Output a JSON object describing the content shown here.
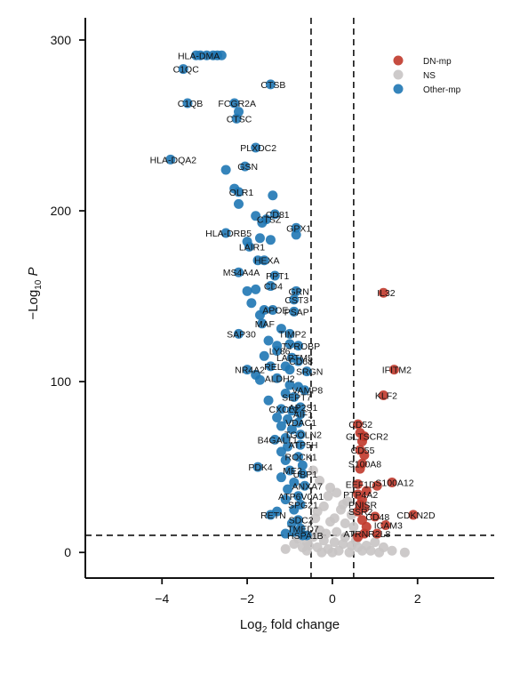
{
  "chart_data": {
    "type": "scatter",
    "title": "",
    "xlabel_base": "Log",
    "xlabel_sub": "2",
    "xlabel_rest": " fold change",
    "ylabel_prefix": "−Log",
    "ylabel_sub": "10",
    "ylabel_var": "P",
    "xlim": [
      -5.8,
      3.8
    ],
    "ylim": [
      -15,
      313
    ],
    "xticks": [
      -4,
      -2,
      0,
      2
    ],
    "yticks": [
      0,
      100,
      200,
      300
    ],
    "xtick_labels": [
      "−4",
      "−2",
      "0",
      "2"
    ],
    "ytick_labels": [
      "0",
      "100",
      "200",
      "300"
    ],
    "grid": false,
    "thresholds": {
      "x": [
        -0.5,
        0.5
      ],
      "y": 10
    },
    "legend": {
      "position": "top-right",
      "entries": [
        {
          "name": "DN-mp",
          "color": "#c0392b"
        },
        {
          "name": "NS",
          "color": "#c8c4c4"
        },
        {
          "name": "Other-mp",
          "color": "#1f77b4"
        }
      ]
    },
    "series": [
      {
        "name": "Other-mp",
        "color": "#1f77b4",
        "points": [
          [
            -3.2,
            291,
            "HLA-DMA"
          ],
          [
            -3.1,
            291,
            ""
          ],
          [
            -2.95,
            291,
            ""
          ],
          [
            -2.8,
            291,
            ""
          ],
          [
            -2.7,
            291,
            ""
          ],
          [
            -2.6,
            291,
            ""
          ],
          [
            -3.5,
            283,
            "C1QC"
          ],
          [
            -1.45,
            274,
            "CTSB"
          ],
          [
            -3.4,
            263,
            "C1QB"
          ],
          [
            -2.3,
            263,
            "FCGR2A"
          ],
          [
            -2.2,
            258,
            ""
          ],
          [
            -2.25,
            254,
            "CTSC"
          ],
          [
            -1.8,
            237,
            "PLXDC2"
          ],
          [
            -3.8,
            230,
            "HLA-DQA2"
          ],
          [
            -2.05,
            226,
            "GSN"
          ],
          [
            -2.5,
            224,
            ""
          ],
          [
            -2.2,
            211,
            "OLR1"
          ],
          [
            -2.3,
            213,
            ""
          ],
          [
            -1.4,
            209,
            ""
          ],
          [
            -2.2,
            204,
            ""
          ],
          [
            -1.35,
            198,
            "CD81"
          ],
          [
            -1.8,
            197,
            ""
          ],
          [
            -1.55,
            195,
            "CTSZ"
          ],
          [
            -1.65,
            193,
            ""
          ],
          [
            -0.85,
            190,
            "GPX1"
          ],
          [
            -0.85,
            186,
            ""
          ],
          [
            -2.5,
            187,
            "HLA-DRB5"
          ],
          [
            -1.7,
            184,
            ""
          ],
          [
            -2.0,
            182,
            ""
          ],
          [
            -1.45,
            183,
            ""
          ],
          [
            -1.95,
            179,
            "LAIR1"
          ],
          [
            -1.6,
            171,
            "HEXA"
          ],
          [
            -1.75,
            171,
            ""
          ],
          [
            -2.2,
            164,
            "MS4A4A"
          ],
          [
            -1.35,
            162,
            "PPT1"
          ],
          [
            -1.45,
            156,
            "CD4"
          ],
          [
            -1.8,
            154,
            ""
          ],
          [
            -2.0,
            153,
            ""
          ],
          [
            -0.85,
            153,
            "GRN"
          ],
          [
            -0.9,
            148,
            "CST3"
          ],
          [
            -1.9,
            146,
            ""
          ],
          [
            -1.4,
            142,
            "APOE"
          ],
          [
            -0.9,
            141,
            "PSAP"
          ],
          [
            -1.6,
            142,
            ""
          ],
          [
            -1.7,
            139,
            ""
          ],
          [
            -1.65,
            134,
            "MAF"
          ],
          [
            -1.2,
            131,
            ""
          ],
          [
            -1.0,
            128,
            "TIMP2"
          ],
          [
            -2.2,
            128,
            "SAP30"
          ],
          [
            -1.5,
            124,
            ""
          ],
          [
            -1.0,
            122,
            ""
          ],
          [
            -0.8,
            121,
            "TYROBP"
          ],
          [
            -1.3,
            121,
            ""
          ],
          [
            -1.3,
            118,
            "LY86"
          ],
          [
            -0.95,
            114,
            "LAPTM5"
          ],
          [
            -1.6,
            115,
            ""
          ],
          [
            -0.8,
            112,
            "CD68"
          ],
          [
            -1.1,
            109,
            ""
          ],
          [
            -1.45,
            109,
            "REL"
          ],
          [
            -1.0,
            107,
            ""
          ],
          [
            -2.0,
            107,
            "NR4A2"
          ],
          [
            -0.6,
            106,
            "SRGN"
          ],
          [
            -1.8,
            104,
            ""
          ],
          [
            -1.3,
            102,
            "ALDH2"
          ],
          [
            -1.7,
            101,
            ""
          ],
          [
            -1.0,
            98,
            ""
          ],
          [
            -0.8,
            97,
            ""
          ],
          [
            -0.65,
            95,
            "VAMP8"
          ],
          [
            -1.1,
            93,
            ""
          ],
          [
            -0.9,
            91,
            "SEPT7"
          ],
          [
            -1.5,
            89,
            ""
          ],
          [
            -0.75,
            85,
            "AP2S1"
          ],
          [
            -1.2,
            84,
            "CXCL2"
          ],
          [
            -0.95,
            83,
            ""
          ],
          [
            -0.75,
            81,
            "AIF1"
          ],
          [
            -1.3,
            79,
            ""
          ],
          [
            -1.05,
            78,
            ""
          ],
          [
            -0.8,
            76,
            "VDAC1"
          ],
          [
            -1.2,
            74,
            ""
          ],
          [
            -0.95,
            72,
            ""
          ],
          [
            -0.75,
            69,
            "TGOLN2"
          ],
          [
            -1.1,
            67,
            ""
          ],
          [
            -1.35,
            66,
            "B4GALT1"
          ],
          [
            -0.75,
            63,
            "ATP5H"
          ],
          [
            -1.05,
            62,
            ""
          ],
          [
            -1.2,
            59,
            ""
          ],
          [
            -0.8,
            56,
            "ROCK1"
          ],
          [
            -1.1,
            54,
            ""
          ],
          [
            -1.75,
            50,
            "PDK4"
          ],
          [
            -0.7,
            51,
            ""
          ],
          [
            -1.0,
            48,
            "ME2"
          ],
          [
            -0.7,
            46,
            "UBP1"
          ],
          [
            -1.2,
            44,
            ""
          ],
          [
            -0.9,
            41,
            ""
          ],
          [
            -0.65,
            39,
            "ANXA7"
          ],
          [
            -1.05,
            37,
            ""
          ],
          [
            -0.8,
            33,
            "ATP6V0A1"
          ],
          [
            -1.1,
            31,
            ""
          ],
          [
            -0.75,
            28,
            "SPG21"
          ],
          [
            -0.9,
            25,
            ""
          ],
          [
            -1.3,
            24,
            ""
          ],
          [
            -1.45,
            22,
            "RETN"
          ],
          [
            -0.8,
            19,
            "SDC2"
          ],
          [
            -0.95,
            17,
            ""
          ],
          [
            -0.75,
            14,
            "TMED7"
          ],
          [
            -0.9,
            12,
            ""
          ],
          [
            -0.7,
            10,
            "HSPA1B"
          ],
          [
            -1.1,
            11,
            ""
          ],
          [
            -0.6,
            10,
            ""
          ]
        ]
      },
      {
        "name": "DN-mp",
        "color": "#c0392b",
        "points": [
          [
            1.2,
            152,
            "IL32"
          ],
          [
            1.45,
            107,
            "IFITM2"
          ],
          [
            1.2,
            92,
            "KLF2"
          ],
          [
            0.6,
            75,
            "CD52"
          ],
          [
            0.65,
            70,
            ""
          ],
          [
            0.75,
            68,
            "GLTSCR2"
          ],
          [
            0.7,
            65,
            ""
          ],
          [
            0.65,
            60,
            "CD55"
          ],
          [
            0.75,
            57,
            ""
          ],
          [
            0.7,
            52,
            "S100A8"
          ],
          [
            0.65,
            49,
            ""
          ],
          [
            1.4,
            41,
            "S100A12"
          ],
          [
            0.6,
            40,
            "EEF1D"
          ],
          [
            1.05,
            39,
            ""
          ],
          [
            0.8,
            36,
            ""
          ],
          [
            0.6,
            34,
            "PTP4A2"
          ],
          [
            0.7,
            31,
            ""
          ],
          [
            0.65,
            28,
            "PNISR"
          ],
          [
            0.75,
            26,
            ""
          ],
          [
            0.6,
            24,
            "SSR2"
          ],
          [
            1.9,
            22,
            "CDKN2D"
          ],
          [
            1.0,
            21,
            "CD48"
          ],
          [
            0.7,
            19,
            ""
          ],
          [
            1.25,
            16,
            "ICAM3"
          ],
          [
            0.8,
            15,
            ""
          ],
          [
            0.75,
            11,
            "ATRNR2L8"
          ],
          [
            1.05,
            11,
            ""
          ],
          [
            0.6,
            9,
            ""
          ]
        ]
      },
      {
        "name": "NS",
        "color": "#c8c4c4",
        "points": [
          [
            -0.45,
            48,
            ""
          ],
          [
            -0.3,
            42,
            ""
          ],
          [
            -0.1,
            33,
            ""
          ],
          [
            0.1,
            35,
            ""
          ],
          [
            0.35,
            30,
            ""
          ],
          [
            -0.2,
            27,
            ""
          ],
          [
            0.2,
            25,
            ""
          ],
          [
            0.45,
            22,
            ""
          ],
          [
            -0.4,
            20,
            ""
          ],
          [
            -0.05,
            18,
            ""
          ],
          [
            0.3,
            17,
            ""
          ],
          [
            0.5,
            15,
            ""
          ],
          [
            -0.3,
            13,
            ""
          ],
          [
            0.1,
            12,
            ""
          ],
          [
            -0.45,
            9,
            ""
          ],
          [
            -0.2,
            7,
            ""
          ],
          [
            0.05,
            6,
            ""
          ],
          [
            0.25,
            5,
            ""
          ],
          [
            0.45,
            4,
            ""
          ],
          [
            -0.35,
            3,
            ""
          ],
          [
            -0.1,
            2,
            ""
          ],
          [
            0.15,
            1,
            ""
          ],
          [
            0.4,
            0,
            ""
          ],
          [
            -0.25,
            0,
            ""
          ],
          [
            0.0,
            0,
            ""
          ],
          [
            0.6,
            3,
            ""
          ],
          [
            0.8,
            4,
            ""
          ],
          [
            1.0,
            6,
            ""
          ],
          [
            1.2,
            3,
            ""
          ],
          [
            1.4,
            1,
            ""
          ],
          [
            1.7,
            0,
            ""
          ],
          [
            -0.6,
            6,
            ""
          ],
          [
            -0.7,
            3,
            ""
          ],
          [
            -0.9,
            5,
            ""
          ],
          [
            -1.1,
            2,
            ""
          ],
          [
            -0.8,
            8,
            ""
          ],
          [
            -0.6,
            1,
            ""
          ],
          [
            0.7,
            1,
            ""
          ],
          [
            0.9,
            1,
            ""
          ],
          [
            1.1,
            0,
            ""
          ],
          [
            0.55,
            7,
            ""
          ],
          [
            -0.55,
            4,
            ""
          ],
          [
            0.3,
            9,
            ""
          ],
          [
            -0.15,
            11,
            ""
          ],
          [
            0.05,
            20,
            ""
          ],
          [
            -0.35,
            24,
            ""
          ],
          [
            0.25,
            28,
            ""
          ],
          [
            -0.05,
            38,
            ""
          ]
        ]
      }
    ]
  }
}
